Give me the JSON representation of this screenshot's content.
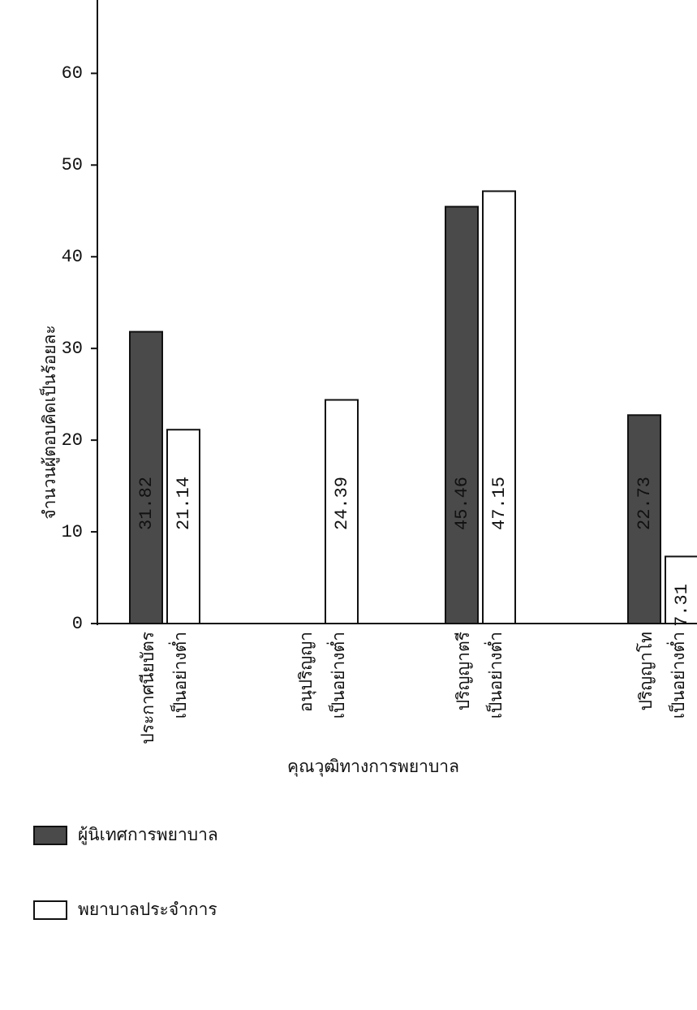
{
  "chart_data": {
    "type": "bar",
    "y_label": "จำนวนผู้ตอบคิดเป็นร้อยละ",
    "x_label": "คุณวุฒิทางการพยาบาล",
    "categories": [
      [
        "ประกาศนียบัตร",
        "เป็นอย่างต่ำ"
      ],
      [
        "อนุปริญญา",
        "เป็นอย่างต่ำ"
      ],
      [
        "ปริญญาตรี",
        "เป็นอย่างต่ำ"
      ],
      [
        "ปริญญาโท",
        "เป็นอย่างต่ำ"
      ]
    ],
    "series": [
      {
        "name": "ผู้นิเทศการพยาบาล",
        "color": "#4a4a4a",
        "values": [
          31.82,
          0,
          45.46,
          22.73
        ]
      },
      {
        "name": "พยาบาลประจำการ",
        "color": "#ffffff",
        "values": [
          21.14,
          24.39,
          47.15,
          7.31
        ]
      }
    ],
    "ylim": [
      0,
      68
    ],
    "yticks": [
      0,
      10,
      20,
      30,
      40,
      50,
      60
    ],
    "grid": false
  }
}
